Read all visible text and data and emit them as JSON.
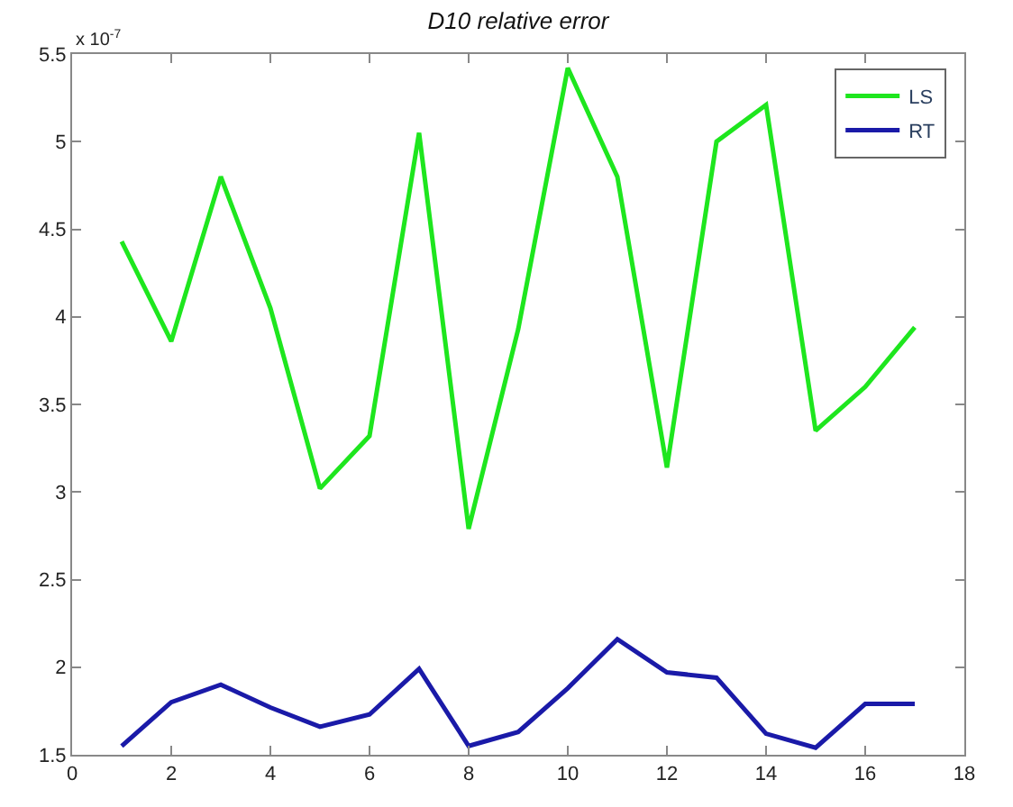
{
  "chart_data": {
    "type": "line",
    "title": "D10 relative error",
    "annotations": [
      "x 10$^{-7}$"
    ],
    "x": [
      1,
      2,
      3,
      4,
      5,
      6,
      7,
      8,
      9,
      10,
      11,
      12,
      13,
      14,
      15,
      16,
      17
    ],
    "series": [
      {
        "name": "LS",
        "color": "#1ee61e",
        "values": [
          4.43,
          3.86,
          4.8,
          4.05,
          3.02,
          3.32,
          5.05,
          2.79,
          3.93,
          5.42,
          4.8,
          3.14,
          5.0,
          5.21,
          3.35,
          3.6,
          3.94
        ]
      },
      {
        "name": "RT",
        "color": "#1a1aa8",
        "values": [
          1.55,
          1.8,
          1.9,
          1.77,
          1.66,
          1.73,
          1.99,
          1.55,
          1.63,
          1.88,
          2.16,
          1.97,
          1.94,
          1.62,
          1.54,
          1.79,
          1.79
        ]
      }
    ],
    "xlim": [
      0,
      18
    ],
    "xticks": [
      0,
      2,
      4,
      6,
      8,
      10,
      12,
      14,
      16,
      18
    ],
    "ylim": [
      1.5,
      5.5
    ],
    "yticks": [
      1.5,
      2,
      2.5,
      3,
      3.5,
      4,
      4.5,
      5,
      5.5
    ],
    "legend": "top right",
    "marker": "none",
    "line_style": "solid"
  }
}
